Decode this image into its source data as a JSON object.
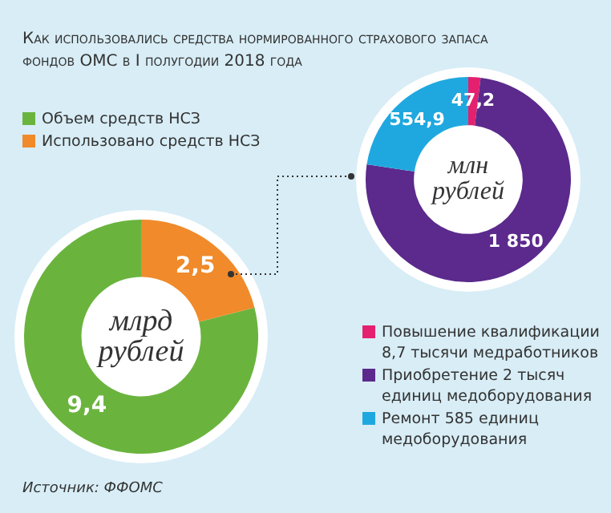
{
  "chart_data": [
    {
      "type": "donut",
      "title": "Как использовались средства нормированного страхового запаса фондов ОМС в I полугодии 2018 года",
      "categories": [
        "Объем средств НСЗ",
        "Использовано средств НСЗ"
      ],
      "values": [
        9.4,
        2.5
      ],
      "value_labels": [
        "9,4",
        "2,5"
      ],
      "colors": [
        "#6ab43e",
        "#f08a2a"
      ],
      "legend": "top left",
      "annotations": [
        "млрд рублей"
      ]
    },
    {
      "type": "donut",
      "categories": [
        "Повышение квалификации 8,7 тысячи медработников",
        "Приобретение 2 тысяч единиц медоборудования",
        "Ремонт 585 единиц медоборудования"
      ],
      "values": [
        47.2,
        1850,
        554.9
      ],
      "value_labels": [
        "47,2",
        "1 850",
        "554,9"
      ],
      "colors": [
        "#e5206e",
        "#5b2a8c",
        "#1fa8df"
      ],
      "legend": "bottom right",
      "annotations": [
        "млн рублей",
        "Источник: ФФОМС"
      ]
    }
  ]
}
